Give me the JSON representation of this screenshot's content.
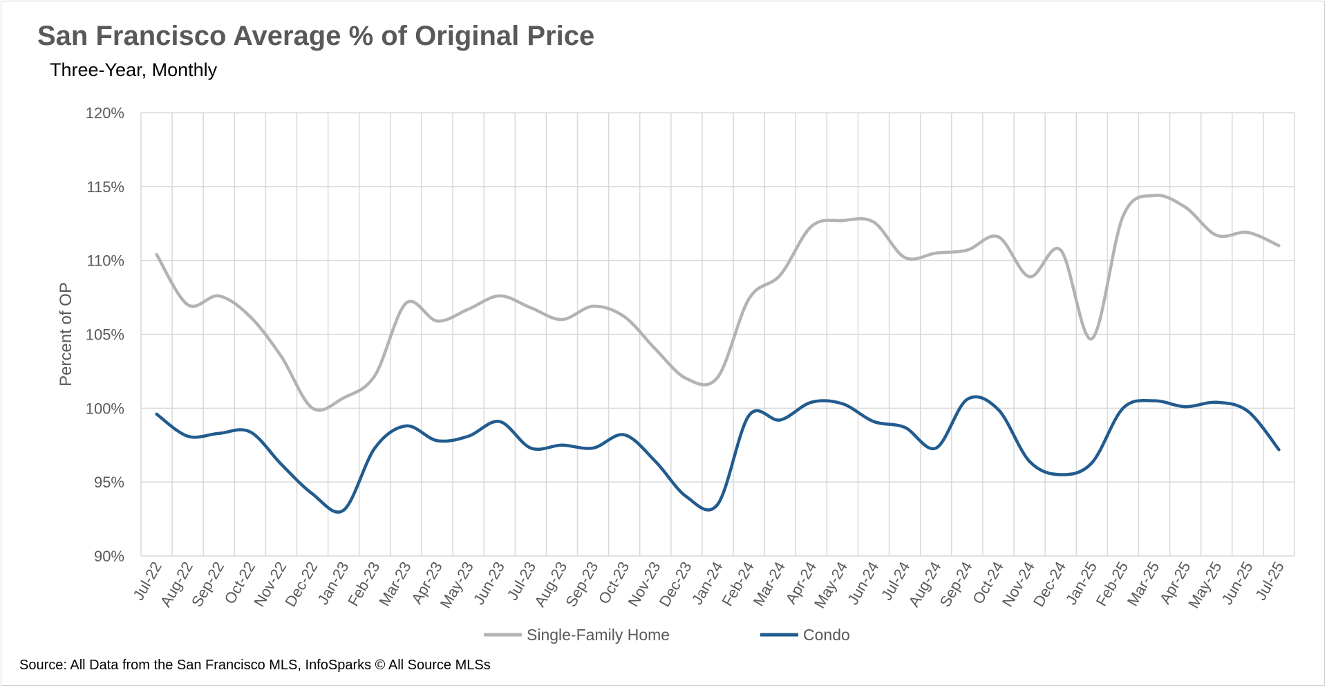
{
  "header": {
    "title": "San Francisco Average % of Original Price",
    "subtitle": "Three-Year, Monthly"
  },
  "footer": {
    "source": "Source: All Data from the San Francisco MLS, InfoSparks © All Source MLSs"
  },
  "colors": {
    "single_family": "#b3b3b3",
    "condo": "#225b8e",
    "grid": "#d9d9d9"
  },
  "chart_data": {
    "type": "line",
    "title": "San Francisco Average % of Original Price",
    "subtitle": "Three-Year, Monthly",
    "xlabel": "",
    "ylabel": "Percent of OP",
    "ylim": [
      90,
      120
    ],
    "yticks": [
      90,
      95,
      100,
      105,
      110,
      115,
      120
    ],
    "ytick_labels": [
      "90%",
      "95%",
      "100%",
      "105%",
      "110%",
      "115%",
      "120%"
    ],
    "grid": true,
    "legend_position": "bottom",
    "categories": [
      "Jul-22",
      "Aug-22",
      "Sep-22",
      "Oct-22",
      "Nov-22",
      "Dec-22",
      "Jan-23",
      "Feb-23",
      "Mar-23",
      "Apr-23",
      "May-23",
      "Jun-23",
      "Jul-23",
      "Aug-23",
      "Sep-23",
      "Oct-23",
      "Nov-23",
      "Dec-23",
      "Jan-24",
      "Feb-24",
      "Mar-24",
      "Apr-24",
      "May-24",
      "Jun-24",
      "Jul-24",
      "Aug-24",
      "Sep-24",
      "Oct-24",
      "Nov-24",
      "Dec-24",
      "Jan-25",
      "Feb-25",
      "Mar-25",
      "Apr-25",
      "May-25",
      "Jun-25",
      "Jul-25"
    ],
    "series": [
      {
        "name": "Single-Family Home",
        "values": [
          110.4,
          107.0,
          107.6,
          106.2,
          103.5,
          100.0,
          100.7,
          102.2,
          107.1,
          105.9,
          106.7,
          107.6,
          106.8,
          106.0,
          106.9,
          106.2,
          104.0,
          102.0,
          102.1,
          107.4,
          109.0,
          112.3,
          112.7,
          112.6,
          110.2,
          110.5,
          110.7,
          111.6,
          108.9,
          110.7,
          104.7,
          113.0,
          114.4,
          113.6,
          111.7,
          111.9,
          111.0
        ]
      },
      {
        "name": "Condo",
        "values": [
          99.6,
          98.1,
          98.3,
          98.4,
          96.2,
          94.2,
          93.1,
          97.3,
          98.8,
          97.8,
          98.1,
          99.1,
          97.3,
          97.5,
          97.3,
          98.2,
          96.4,
          94.0,
          93.5,
          99.5,
          99.2,
          100.4,
          100.3,
          99.1,
          98.7,
          97.3,
          100.6,
          99.9,
          96.4,
          95.5,
          96.3,
          100.0,
          100.5,
          100.1,
          100.4,
          99.8,
          97.2
        ]
      }
    ]
  }
}
